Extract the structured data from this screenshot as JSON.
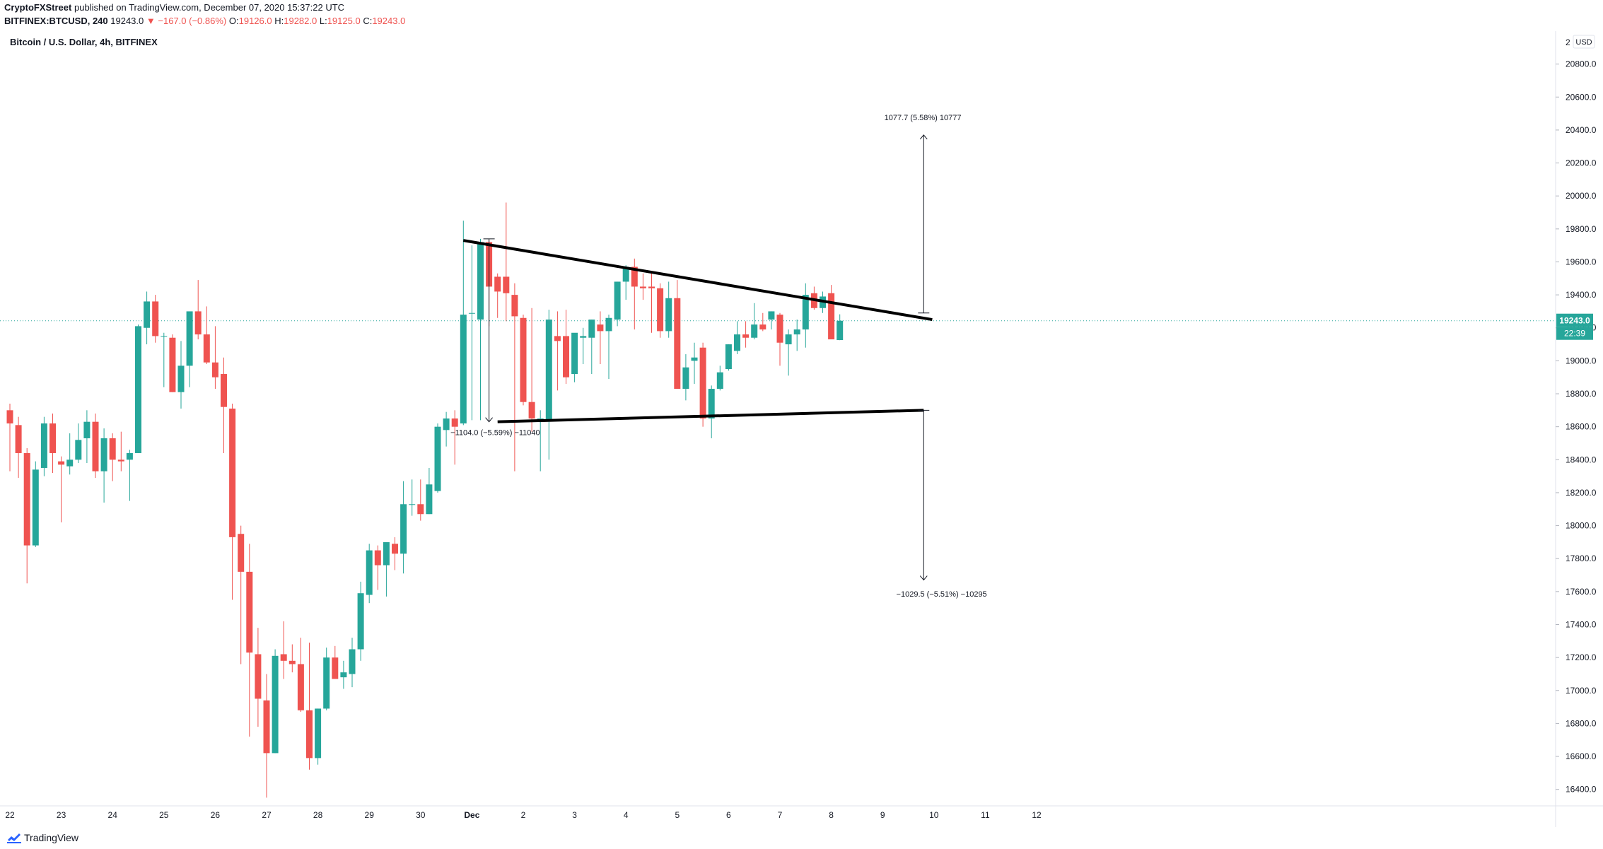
{
  "header": {
    "publisher": "CryptoFXStreet",
    "published_text": "published on TradingView.com, December 07, 2020 15:37:22 UTC",
    "symbol": "BITFINEX:BTCUSD, 240",
    "last_price": "19243.0",
    "change_arrow": "▼",
    "change": "−167.0 (−0.86%)",
    "ohlc": {
      "o_label": "O:",
      "o": "19126.0",
      "h_label": "H:",
      "h": "19282.0",
      "l_label": "L:",
      "l": "19125.0",
      "c_label": "C:",
      "c": "19243.0"
    }
  },
  "chart_data": {
    "type": "candlestick",
    "title": "Bitcoin / U.S. Dollar, 4h, BITFINEX",
    "currency_label": "USD",
    "ylim": [
      16300,
      21000
    ],
    "y_ticks": [
      16400,
      16600,
      16800,
      17000,
      17200,
      17400,
      17600,
      17800,
      18000,
      18200,
      18400,
      18600,
      18800,
      19000,
      19200,
      19400,
      19600,
      19800,
      20000,
      20200,
      20400,
      20600,
      20800
    ],
    "y_tick_top_partial": "2",
    "x_ticks": [
      {
        "label": "22",
        "bar": 0
      },
      {
        "label": "23",
        "bar": 6
      },
      {
        "label": "24",
        "bar": 12
      },
      {
        "label": "25",
        "bar": 18
      },
      {
        "label": "26",
        "bar": 24
      },
      {
        "label": "27",
        "bar": 30
      },
      {
        "label": "28",
        "bar": 36
      },
      {
        "label": "29",
        "bar": 42
      },
      {
        "label": "30",
        "bar": 48
      },
      {
        "label": "Dec",
        "bar": 54
      },
      {
        "label": "2",
        "bar": 60
      },
      {
        "label": "3",
        "bar": 66
      },
      {
        "label": "4",
        "bar": 72
      },
      {
        "label": "5",
        "bar": 78
      },
      {
        "label": "6",
        "bar": 84
      },
      {
        "label": "7",
        "bar": 90
      },
      {
        "label": "8",
        "bar": 96
      },
      {
        "label": "9",
        "bar": 102
      },
      {
        "label": "10",
        "bar": 108
      },
      {
        "label": "11",
        "bar": 114
      },
      {
        "label": "12",
        "bar": 120
      }
    ],
    "up_color": "#26a69a",
    "down_color": "#ef5350",
    "candles": [
      {
        "o": 18700,
        "h": 18740,
        "l": 18330,
        "c": 18620
      },
      {
        "o": 18610,
        "h": 18660,
        "l": 18290,
        "c": 18440
      },
      {
        "o": 18440,
        "h": 18470,
        "l": 17650,
        "c": 17880
      },
      {
        "o": 17880,
        "h": 18390,
        "l": 17870,
        "c": 18340
      },
      {
        "o": 18350,
        "h": 18660,
        "l": 18300,
        "c": 18620
      },
      {
        "o": 18620,
        "h": 18680,
        "l": 18320,
        "c": 18440
      },
      {
        "o": 18390,
        "h": 18420,
        "l": 18020,
        "c": 18370
      },
      {
        "o": 18360,
        "h": 18560,
        "l": 18310,
        "c": 18400
      },
      {
        "o": 18400,
        "h": 18620,
        "l": 18380,
        "c": 18520
      },
      {
        "o": 18530,
        "h": 18700,
        "l": 18380,
        "c": 18630
      },
      {
        "o": 18630,
        "h": 18680,
        "l": 18290,
        "c": 18330
      },
      {
        "o": 18330,
        "h": 18590,
        "l": 18140,
        "c": 18530
      },
      {
        "o": 18530,
        "h": 18560,
        "l": 18270,
        "c": 18400
      },
      {
        "o": 18400,
        "h": 18570,
        "l": 18330,
        "c": 18390
      },
      {
        "o": 18400,
        "h": 18460,
        "l": 18150,
        "c": 18440
      },
      {
        "o": 18440,
        "h": 19220,
        "l": 18440,
        "c": 19210
      },
      {
        "o": 19200,
        "h": 19420,
        "l": 19100,
        "c": 19360
      },
      {
        "o": 19360,
        "h": 19400,
        "l": 19110,
        "c": 19150
      },
      {
        "o": 19150,
        "h": 19170,
        "l": 18840,
        "c": 19150
      },
      {
        "o": 19140,
        "h": 19160,
        "l": 18810,
        "c": 18810
      },
      {
        "o": 18810,
        "h": 19120,
        "l": 18710,
        "c": 18970
      },
      {
        "o": 18970,
        "h": 19270,
        "l": 18840,
        "c": 19300
      },
      {
        "o": 19300,
        "h": 19490,
        "l": 19130,
        "c": 19160
      },
      {
        "o": 19160,
        "h": 19330,
        "l": 18980,
        "c": 18990
      },
      {
        "o": 18990,
        "h": 19210,
        "l": 18830,
        "c": 18900
      },
      {
        "o": 18920,
        "h": 19020,
        "l": 18440,
        "c": 18720
      },
      {
        "o": 18710,
        "h": 18740,
        "l": 17550,
        "c": 17930
      },
      {
        "o": 17950,
        "h": 18000,
        "l": 17160,
        "c": 17720
      },
      {
        "o": 17720,
        "h": 17890,
        "l": 16720,
        "c": 17230
      },
      {
        "o": 17220,
        "h": 17380,
        "l": 16780,
        "c": 16950
      },
      {
        "o": 16940,
        "h": 17100,
        "l": 16350,
        "c": 16620
      },
      {
        "o": 16620,
        "h": 17250,
        "l": 16620,
        "c": 17210
      },
      {
        "o": 17220,
        "h": 17420,
        "l": 17070,
        "c": 17180
      },
      {
        "o": 17180,
        "h": 17280,
        "l": 17110,
        "c": 17160
      },
      {
        "o": 17160,
        "h": 17320,
        "l": 16870,
        "c": 16880
      },
      {
        "o": 16880,
        "h": 17290,
        "l": 16520,
        "c": 16590
      },
      {
        "o": 16590,
        "h": 16890,
        "l": 16550,
        "c": 16890
      },
      {
        "o": 16890,
        "h": 17260,
        "l": 16880,
        "c": 17200
      },
      {
        "o": 17200,
        "h": 17270,
        "l": 17080,
        "c": 17070
      },
      {
        "o": 17080,
        "h": 17180,
        "l": 17010,
        "c": 17110
      },
      {
        "o": 17100,
        "h": 17320,
        "l": 17020,
        "c": 17250
      },
      {
        "o": 17250,
        "h": 17660,
        "l": 17180,
        "c": 17590
      },
      {
        "o": 17580,
        "h": 17890,
        "l": 17530,
        "c": 17850
      },
      {
        "o": 17850,
        "h": 17880,
        "l": 17610,
        "c": 17760
      },
      {
        "o": 17760,
        "h": 17890,
        "l": 17570,
        "c": 17900
      },
      {
        "o": 17890,
        "h": 17930,
        "l": 17730,
        "c": 17830
      },
      {
        "o": 17830,
        "h": 18270,
        "l": 17710,
        "c": 18130
      },
      {
        "o": 18130,
        "h": 18280,
        "l": 18060,
        "c": 18130
      },
      {
        "o": 18130,
        "h": 18280,
        "l": 18030,
        "c": 18070
      },
      {
        "o": 18070,
        "h": 18350,
        "l": 18070,
        "c": 18250
      },
      {
        "o": 18210,
        "h": 18620,
        "l": 18200,
        "c": 18600
      },
      {
        "o": 18580,
        "h": 18690,
        "l": 18480,
        "c": 18650
      },
      {
        "o": 18650,
        "h": 18700,
        "l": 18370,
        "c": 18600
      },
      {
        "o": 18620,
        "h": 19850,
        "l": 18610,
        "c": 19280
      },
      {
        "o": 19290,
        "h": 19700,
        "l": 18640,
        "c": 19290
      },
      {
        "o": 19250,
        "h": 19740,
        "l": 18640,
        "c": 19720
      },
      {
        "o": 19720,
        "h": 19730,
        "l": 19210,
        "c": 19450
      },
      {
        "o": 19510,
        "h": 19530,
        "l": 19260,
        "c": 19420
      },
      {
        "o": 19510,
        "h": 19960,
        "l": 19240,
        "c": 19410
      },
      {
        "o": 19400,
        "h": 19470,
        "l": 18330,
        "c": 19270
      },
      {
        "o": 19260,
        "h": 19280,
        "l": 18730,
        "c": 18750
      },
      {
        "o": 18750,
        "h": 19320,
        "l": 18570,
        "c": 18650
      },
      {
        "o": 18640,
        "h": 18700,
        "l": 18330,
        "c": 18650
      },
      {
        "o": 18640,
        "h": 19310,
        "l": 18400,
        "c": 19250
      },
      {
        "o": 19150,
        "h": 19300,
        "l": 18820,
        "c": 19120
      },
      {
        "o": 19150,
        "h": 19310,
        "l": 18860,
        "c": 18900
      },
      {
        "o": 18920,
        "h": 19150,
        "l": 18870,
        "c": 19170
      },
      {
        "o": 19140,
        "h": 19200,
        "l": 18980,
        "c": 19150
      },
      {
        "o": 19140,
        "h": 19250,
        "l": 18920,
        "c": 19250
      },
      {
        "o": 19220,
        "h": 19300,
        "l": 18980,
        "c": 19180
      },
      {
        "o": 19180,
        "h": 19280,
        "l": 18890,
        "c": 19260
      },
      {
        "o": 19250,
        "h": 19480,
        "l": 19210,
        "c": 19480
      },
      {
        "o": 19480,
        "h": 19580,
        "l": 19370,
        "c": 19570
      },
      {
        "o": 19570,
        "h": 19620,
        "l": 19190,
        "c": 19450
      },
      {
        "o": 19450,
        "h": 19530,
        "l": 19370,
        "c": 19440
      },
      {
        "o": 19450,
        "h": 19530,
        "l": 19170,
        "c": 19440
      },
      {
        "o": 19440,
        "h": 19470,
        "l": 19140,
        "c": 19180
      },
      {
        "o": 19180,
        "h": 19480,
        "l": 19140,
        "c": 19380
      },
      {
        "o": 19380,
        "h": 19490,
        "l": 18830,
        "c": 18830
      },
      {
        "o": 18830,
        "h": 19040,
        "l": 18760,
        "c": 18960
      },
      {
        "o": 19000,
        "h": 19110,
        "l": 18860,
        "c": 19020
      },
      {
        "o": 19080,
        "h": 19110,
        "l": 18600,
        "c": 18650
      },
      {
        "o": 18650,
        "h": 18850,
        "l": 18530,
        "c": 18830
      },
      {
        "o": 18830,
        "h": 18970,
        "l": 18820,
        "c": 18930
      },
      {
        "o": 18950,
        "h": 19100,
        "l": 18940,
        "c": 19100
      },
      {
        "o": 19060,
        "h": 19240,
        "l": 19040,
        "c": 19160
      },
      {
        "o": 19160,
        "h": 19240,
        "l": 19080,
        "c": 19140
      },
      {
        "o": 19140,
        "h": 19350,
        "l": 19130,
        "c": 19220
      },
      {
        "o": 19220,
        "h": 19290,
        "l": 19180,
        "c": 19190
      },
      {
        "o": 19250,
        "h": 19300,
        "l": 19190,
        "c": 19300
      },
      {
        "o": 19280,
        "h": 19290,
        "l": 18970,
        "c": 19110
      },
      {
        "o": 19100,
        "h": 19190,
        "l": 18910,
        "c": 19160
      },
      {
        "o": 19160,
        "h": 19250,
        "l": 19060,
        "c": 19190
      },
      {
        "o": 19190,
        "h": 19470,
        "l": 19080,
        "c": 19400
      },
      {
        "o": 19410,
        "h": 19450,
        "l": 19310,
        "c": 19320
      },
      {
        "o": 19320,
        "h": 19420,
        "l": 19290,
        "c": 19390
      },
      {
        "o": 19410,
        "h": 19460,
        "l": 19150,
        "c": 19130
      },
      {
        "o": 19126,
        "h": 19282,
        "l": 19125,
        "c": 19243
      }
    ],
    "current_price_line": 19243.0,
    "price_label": "19243.0",
    "countdown_label": "22:39",
    "trendlines": [
      {
        "name": "upper-trendline",
        "from": {
          "bar": 53,
          "price": 19730
        },
        "to": {
          "bar": 107.8,
          "price": 19250
        }
      },
      {
        "name": "lower-trendline",
        "from": {
          "bar": 57,
          "price": 18630
        },
        "to": {
          "bar": 106.8,
          "price": 18700
        }
      }
    ],
    "measurements": [
      {
        "name": "pole-measure",
        "x_bar": 56,
        "from_price": 19740,
        "to_price": 18630,
        "label": "−1104.0 (−5.59%) −11040",
        "label_bar": 51.5,
        "label_price": 18550
      },
      {
        "name": "target-up-measure",
        "x_bar": 106.8,
        "from_price": 19290,
        "to_price": 20370,
        "label": "1077.7 (5.58%) 10777",
        "label_bar": 102.2,
        "label_price": 20460
      },
      {
        "name": "target-down-measure",
        "x_bar": 106.8,
        "from_price": 18700,
        "to_price": 17670,
        "label": "−1029.5 (−5.51%) −10295",
        "label_bar": 103.6,
        "label_price": 17570
      }
    ]
  },
  "footer": {
    "brand": "TradingView"
  }
}
